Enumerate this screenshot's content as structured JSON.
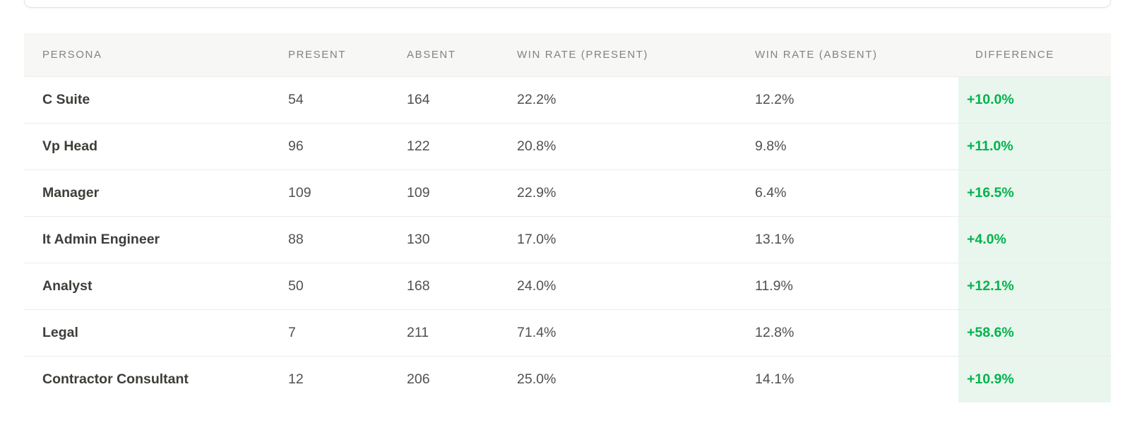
{
  "colors": {
    "positive_text": "#00b44c",
    "positive_bg": "#e9f6ee",
    "header_bg": "#f7f7f6"
  },
  "table": {
    "columns": [
      {
        "key": "persona",
        "label": "PERSONA"
      },
      {
        "key": "present",
        "label": "PRESENT"
      },
      {
        "key": "absent",
        "label": "ABSENT"
      },
      {
        "key": "win_rate_present",
        "label": "WIN RATE (PRESENT)"
      },
      {
        "key": "win_rate_absent",
        "label": "WIN RATE (ABSENT)"
      },
      {
        "key": "difference",
        "label": "DIFFERENCE"
      }
    ],
    "rows": [
      {
        "persona": "C Suite",
        "present": "54",
        "absent": "164",
        "win_rate_present": "22.2%",
        "win_rate_absent": "12.2%",
        "difference": "+10.0%"
      },
      {
        "persona": "Vp Head",
        "present": "96",
        "absent": "122",
        "win_rate_present": "20.8%",
        "win_rate_absent": "9.8%",
        "difference": "+11.0%"
      },
      {
        "persona": "Manager",
        "present": "109",
        "absent": "109",
        "win_rate_present": "22.9%",
        "win_rate_absent": "6.4%",
        "difference": "+16.5%"
      },
      {
        "persona": "It Admin Engineer",
        "present": "88",
        "absent": "130",
        "win_rate_present": "17.0%",
        "win_rate_absent": "13.1%",
        "difference": "+4.0%"
      },
      {
        "persona": "Analyst",
        "present": "50",
        "absent": "168",
        "win_rate_present": "24.0%",
        "win_rate_absent": "11.9%",
        "difference": "+12.1%"
      },
      {
        "persona": "Legal",
        "present": "7",
        "absent": "211",
        "win_rate_present": "71.4%",
        "win_rate_absent": "12.8%",
        "difference": "+58.6%"
      },
      {
        "persona": "Contractor Consultant",
        "present": "12",
        "absent": "206",
        "win_rate_present": "25.0%",
        "win_rate_absent": "14.1%",
        "difference": "+10.9%"
      }
    ]
  }
}
